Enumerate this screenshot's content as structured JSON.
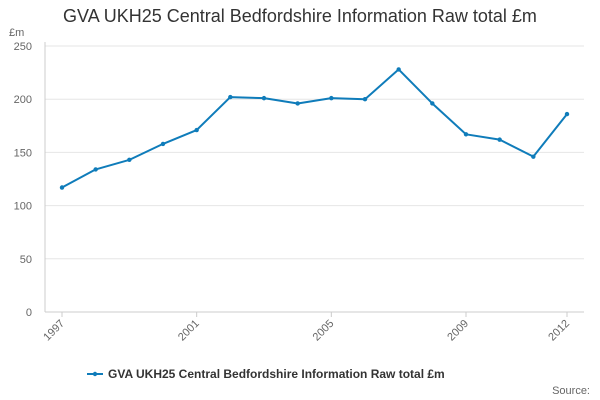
{
  "chart_data": {
    "type": "line",
    "title": "GVA UKH25 Central Bedfordshire Information Raw total £m",
    "ylabel": "£m",
    "xlabel": "",
    "ylim": [
      0,
      250
    ],
    "y_ticks": [
      0,
      50,
      100,
      150,
      200,
      250
    ],
    "x": [
      1997,
      1998,
      1999,
      2000,
      2001,
      2002,
      2003,
      2004,
      2005,
      2006,
      2007,
      2008,
      2009,
      2010,
      2011,
      2012
    ],
    "x_tick_labels": [
      "1997",
      "2001",
      "2005",
      "2009",
      "2012"
    ],
    "series": [
      {
        "name": "GVA UKH25 Central Bedfordshire Information Raw total £m",
        "color": "#0f7cba",
        "values": [
          117,
          134,
          143,
          158,
          171,
          202,
          201,
          196,
          201,
          200,
          228,
          196,
          167,
          162,
          146,
          186
        ]
      }
    ],
    "grid": true,
    "legend_position": "bottom",
    "source_label": "Source:"
  }
}
